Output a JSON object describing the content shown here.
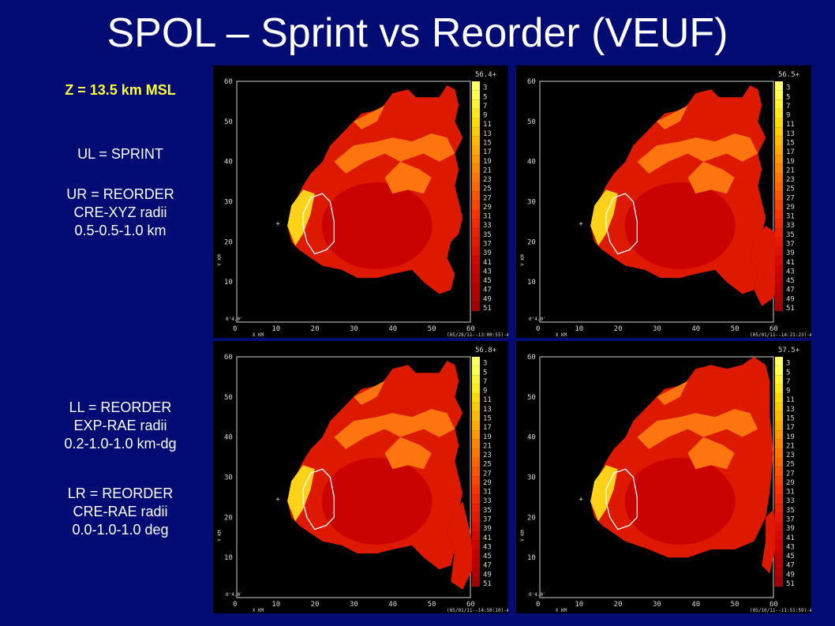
{
  "title": "SPOL – Sprint vs Reorder (VEUF)",
  "z_label": "Z = 13.5 km MSL",
  "descriptions": {
    "ul": [
      "UL = SPRINT"
    ],
    "ur": [
      "UR = REORDER",
      "CRE-XYZ radii",
      "0.5-0.5-1.0 km"
    ],
    "ll": [
      "LL = REORDER",
      "EXP-RAE radii",
      "0.2-1.0-1.0 km-dg"
    ],
    "lr": [
      "LR = REORDER",
      "CRE-RAE radii",
      "0.0-1.0-1.0 deg"
    ]
  },
  "axis": {
    "x_ticks": [
      "0",
      "10",
      "20",
      "30",
      "40",
      "50",
      "60"
    ],
    "y_ticks": [
      "0",
      "10",
      "20",
      "30",
      "40",
      "50",
      "60"
    ],
    "x_label": "X  KM",
    "y_label": "Y  KM",
    "origin_label": "0'4.0'"
  },
  "colorbar": {
    "values": [
      "3",
      "5",
      "7",
      "9",
      "11",
      "13",
      "15",
      "17",
      "19",
      "21",
      "23",
      "25",
      "27",
      "29",
      "31",
      "33",
      "35",
      "37",
      "39",
      "41",
      "43",
      "45",
      "47",
      "49",
      "51"
    ],
    "colors": [
      "#ffff66",
      "#ffff4d",
      "#fff533",
      "#ffe91a",
      "#ffdc00",
      "#ffcc00",
      "#ffbb00",
      "#ffaa00",
      "#ff9900",
      "#ff8800",
      "#ff7700",
      "#ff6600",
      "#ff5500",
      "#ff4400",
      "#ff3300",
      "#f52a00",
      "#ee2200",
      "#e61a00",
      "#dd1100",
      "#d40a00",
      "#cc0500",
      "#c40000",
      "#bb0000",
      "#b00000",
      "#a30000"
    ]
  },
  "panels": [
    {
      "id": "ul",
      "max_label": "56.4+",
      "footer": "(05/28/11--13:00:55)-#1"
    },
    {
      "id": "ur",
      "max_label": "56.5+",
      "footer": "(05/01/11--14:21:23)-#1"
    },
    {
      "id": "ll",
      "max_label": "56.8+",
      "footer": "(05/01/11--14:50:10)-#1"
    },
    {
      "id": "lr",
      "max_label": "57.5+",
      "footer": "(05/10/11--11:51:59)-#1"
    }
  ]
}
